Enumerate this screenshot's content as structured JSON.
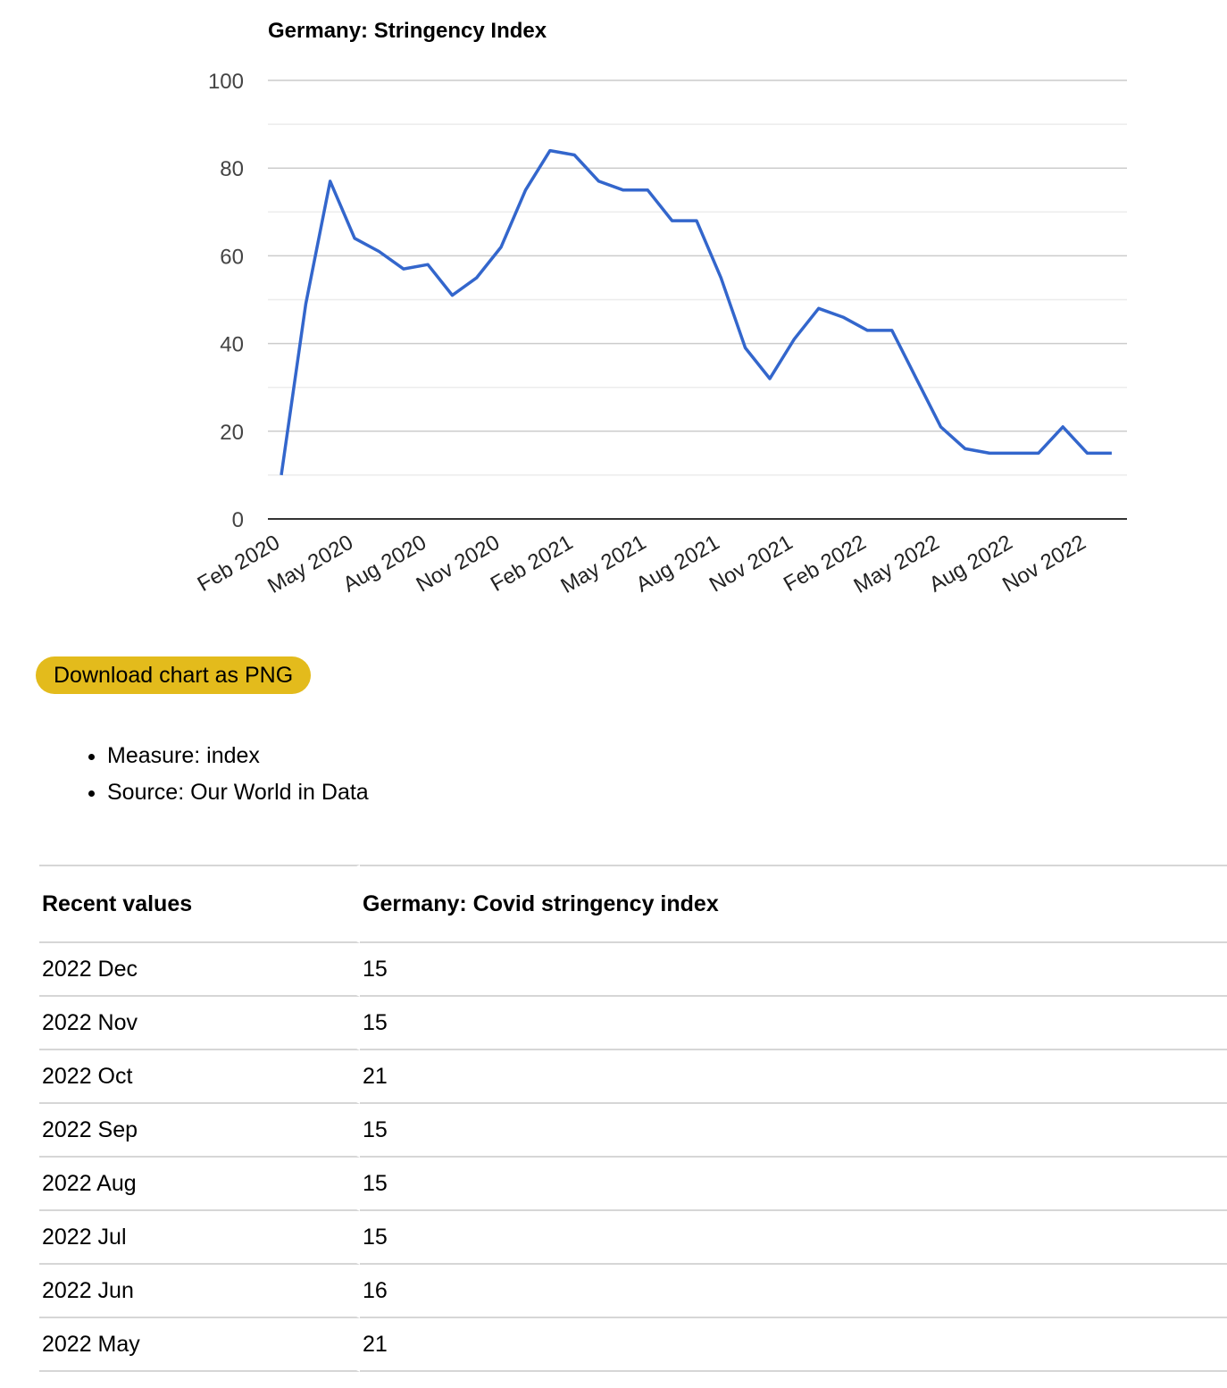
{
  "chart_data": {
    "type": "line",
    "title": "Germany: Stringency Index",
    "xlabel": "",
    "ylabel": "",
    "ylim": [
      0,
      100
    ],
    "yticks": [
      0,
      20,
      40,
      60,
      80,
      100
    ],
    "grid": true,
    "x_tick_labels": [
      "Feb 2020",
      "May 2020",
      "Aug 2020",
      "Nov 2020",
      "Feb 2021",
      "May 2021",
      "Aug 2021",
      "Nov 2021",
      "Feb 2022",
      "May 2022",
      "Aug 2022",
      "Nov 2022"
    ],
    "line_color": "#3366cc",
    "series": [
      {
        "x": [
          "2020-02",
          "2020-03",
          "2020-04",
          "2020-05",
          "2020-06",
          "2020-07",
          "2020-08",
          "2020-09",
          "2020-10",
          "2020-11",
          "2020-12",
          "2021-01",
          "2021-02",
          "2021-03",
          "2021-04",
          "2021-05",
          "2021-06",
          "2021-07",
          "2021-08",
          "2021-09",
          "2021-10",
          "2021-11",
          "2021-12",
          "2022-01",
          "2022-02",
          "2022-03",
          "2022-04",
          "2022-05",
          "2022-06",
          "2022-07",
          "2022-08",
          "2022-09",
          "2022-10",
          "2022-11",
          "2022-12"
        ],
        "values": [
          10,
          49,
          77,
          64,
          61,
          57,
          58,
          51,
          55,
          62,
          75,
          84,
          83,
          77,
          75,
          75,
          68,
          68,
          55,
          39,
          32,
          41,
          48,
          46,
          43,
          43,
          32,
          21,
          16,
          15,
          15,
          15,
          21,
          15,
          15
        ]
      }
    ]
  },
  "download": {
    "label": "Download chart as PNG",
    "color": "#e3bb1c"
  },
  "meta": [
    "Measure: index",
    "Source: Our World in Data"
  ],
  "table": {
    "headers": [
      "Recent values",
      "Germany: Covid stringency index"
    ],
    "rows": [
      [
        "2022  Dec",
        "15"
      ],
      [
        "2022  Nov",
        "15"
      ],
      [
        "2022  Oct",
        "21"
      ],
      [
        "2022  Sep",
        "15"
      ],
      [
        "2022  Aug",
        "15"
      ],
      [
        "2022  Jul",
        "15"
      ],
      [
        "2022  Jun",
        "16"
      ],
      [
        "2022  May",
        "21"
      ]
    ]
  }
}
